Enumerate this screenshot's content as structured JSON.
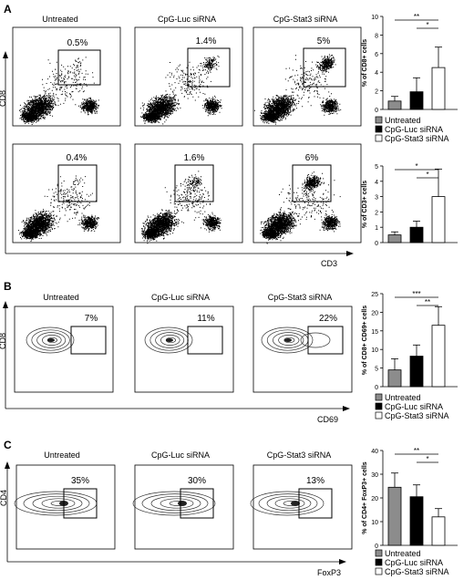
{
  "panels": {
    "A": {
      "letter": "A",
      "conditions": [
        "Untreated",
        "CpG-Luc siRNA",
        "CpG-Stat3 siRNA"
      ],
      "y_axis_label": "CD8",
      "x_axis_label": "CD3",
      "row1_percents": [
        "0.5%",
        "1.4%",
        "5%"
      ],
      "row2_percents": [
        "0.4%",
        "1.6%",
        "6%"
      ]
    },
    "B": {
      "letter": "B",
      "conditions": [
        "Untreated",
        "CpG-Luc siRNA",
        "CpG-Stat3 siRNA"
      ],
      "y_axis_label": "CD8",
      "x_axis_label": "CD69",
      "percents": [
        "7%",
        "11%",
        "22%"
      ]
    },
    "C": {
      "letter": "C",
      "conditions": [
        "Untreated",
        "CpG-Luc siRNA",
        "CpG-Stat3 siRNA"
      ],
      "y_axis_label": "CD4",
      "x_axis_label": "FoxP3",
      "percents": [
        "35%",
        "30%",
        "13%"
      ]
    }
  },
  "legend": [
    "Untreated",
    "CpG-Luc siRNA",
    "CpG-Stat3 siRNA"
  ],
  "colors": {
    "untreated": "#8c8c8c",
    "luc": "#000000",
    "stat3": "#ffffff"
  },
  "chart_data": [
    {
      "type": "bar",
      "ylabel": "% of CD8+ cells",
      "categories": [
        "Untreated",
        "CpG-Luc siRNA",
        "CpG-Stat3 siRNA"
      ],
      "values": [
        0.9,
        1.9,
        4.5
      ],
      "errors": [
        0.5,
        1.5,
        2.2
      ],
      "ylim": [
        0,
        10
      ],
      "yticks": [
        "0",
        "2",
        "4",
        "6",
        "8",
        "10"
      ],
      "significance": [
        {
          "from": 0,
          "to": 2,
          "label": "**"
        },
        {
          "from": 1,
          "to": 2,
          "label": "*"
        }
      ]
    },
    {
      "type": "bar",
      "ylabel": "% of CD3+ cells",
      "categories": [
        "Untreated",
        "CpG-Luc siRNA",
        "CpG-Stat3 siRNA"
      ],
      "values": [
        0.5,
        1.0,
        3.0
      ],
      "errors": [
        0.2,
        0.4,
        1.8
      ],
      "ylim": [
        0,
        5
      ],
      "yticks": [
        "0",
        "1",
        "2",
        "3",
        "4",
        "5"
      ],
      "significance": [
        {
          "from": 0,
          "to": 2,
          "label": "*"
        },
        {
          "from": 1,
          "to": 2,
          "label": "*"
        }
      ]
    },
    {
      "type": "bar",
      "ylabel": "% of CD8+ CD69+ cells",
      "categories": [
        "Untreated",
        "CpG-Luc siRNA",
        "CpG-Stat3 siRNA"
      ],
      "values": [
        4.5,
        8.2,
        16.5
      ],
      "errors": [
        3.0,
        3.0,
        5.0
      ],
      "ylim": [
        0,
        25
      ],
      "yticks": [
        "0",
        "5",
        "10",
        "15",
        "20",
        "25"
      ],
      "significance": [
        {
          "from": 0,
          "to": 2,
          "label": "***"
        },
        {
          "from": 1,
          "to": 2,
          "label": "**"
        }
      ]
    },
    {
      "type": "bar",
      "ylabel": "% of CD4+ FoxP3+ cells",
      "categories": [
        "Untreated",
        "CpG-Luc siRNA",
        "CpG-Stat3 siRNA"
      ],
      "values": [
        24.5,
        20.5,
        12.0
      ],
      "errors": [
        6.0,
        5.0,
        3.5
      ],
      "ylim": [
        0,
        40
      ],
      "yticks": [
        "0",
        "10",
        "20",
        "30",
        "40"
      ],
      "significance": [
        {
          "from": 0,
          "to": 2,
          "label": "**"
        },
        {
          "from": 1,
          "to": 2,
          "label": "*"
        }
      ]
    }
  ]
}
